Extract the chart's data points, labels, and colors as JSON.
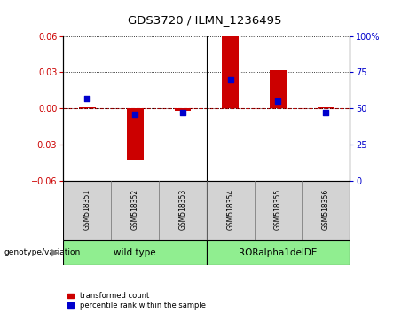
{
  "title": "GDS3720 / ILMN_1236495",
  "samples": [
    "GSM518351",
    "GSM518352",
    "GSM518353",
    "GSM518354",
    "GSM518355",
    "GSM518356"
  ],
  "red_values": [
    0.001,
    -0.043,
    -0.002,
    0.062,
    0.032,
    0.001
  ],
  "blue_values_pct": [
    57,
    46,
    47,
    70,
    55,
    47
  ],
  "ylim_left": [
    -0.06,
    0.06
  ],
  "ylim_right": [
    0,
    100
  ],
  "yticks_left": [
    -0.06,
    -0.03,
    0,
    0.03,
    0.06
  ],
  "yticks_right": [
    0,
    25,
    50,
    75,
    100
  ],
  "red_color": "#CC0000",
  "blue_color": "#0000CC",
  "bar_width": 0.35,
  "blue_marker_size": 20,
  "legend_labels": [
    "transformed count",
    "percentile rank within the sample"
  ],
  "plot_bg": "#ffffff",
  "grid_color": "black",
  "hline_color": "#CC0000",
  "group1_label": "wild type",
  "group2_label": "RORalpha1delDE",
  "group_color": "#90EE90",
  "label_color": "#d3d3d3",
  "geno_label": "genotype/variation"
}
